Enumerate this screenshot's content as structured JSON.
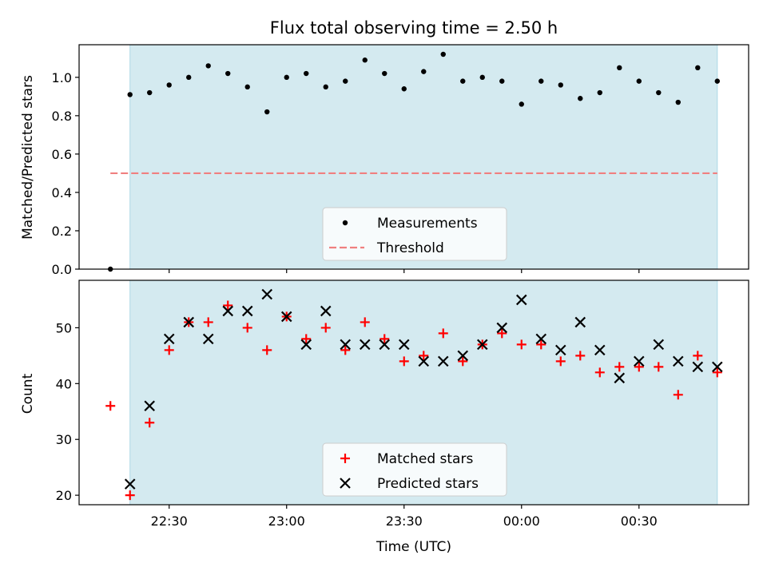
{
  "chart_data": [
    {
      "type": "scatter",
      "title": "Flux total observing time = 2.50 h",
      "xlabel": "",
      "ylabel": "Matched/Predicted stars",
      "ylim": [
        0,
        1.17
      ],
      "yticks": [
        "0.0",
        "0.2",
        "0.4",
        "0.6",
        "0.8",
        "1.0"
      ],
      "ytick_values": [
        0,
        0.2,
        0.4,
        0.6,
        0.8,
        1.0
      ],
      "x_axis": "time (UTC)",
      "xlim": [
        "22:07",
        "00:58"
      ],
      "shaded_span": [
        "22:20",
        "00:50"
      ],
      "shade_color": "#d4eaf0",
      "grid": false,
      "legend_position": "lower center",
      "series": [
        {
          "name": "Measurements",
          "marker": "dot",
          "color": "#000000",
          "points": [
            [
              "22:15",
              0.0
            ],
            [
              "22:20",
              0.91
            ],
            [
              "22:25",
              0.92
            ],
            [
              "22:30",
              0.96
            ],
            [
              "22:35",
              1.0
            ],
            [
              "22:40",
              1.06
            ],
            [
              "22:45",
              1.02
            ],
            [
              "22:50",
              0.95
            ],
            [
              "22:55",
              0.82
            ],
            [
              "23:00",
              1.0
            ],
            [
              "23:05",
              1.02
            ],
            [
              "23:10",
              0.95
            ],
            [
              "23:15",
              0.98
            ],
            [
              "23:20",
              1.09
            ],
            [
              "23:25",
              1.02
            ],
            [
              "23:30",
              0.94
            ],
            [
              "23:35",
              1.03
            ],
            [
              "23:40",
              1.12
            ],
            [
              "23:45",
              0.98
            ],
            [
              "23:50",
              1.0
            ],
            [
              "23:55",
              0.98
            ],
            [
              "00:00",
              0.86
            ],
            [
              "00:05",
              0.98
            ],
            [
              "00:10",
              0.96
            ],
            [
              "00:15",
              0.89
            ],
            [
              "00:20",
              0.92
            ],
            [
              "00:25",
              1.05
            ],
            [
              "00:30",
              0.98
            ],
            [
              "00:35",
              0.92
            ],
            [
              "00:40",
              0.87
            ],
            [
              "00:45",
              1.05
            ],
            [
              "00:50",
              0.98
            ]
          ]
        },
        {
          "name": "Threshold",
          "line": "dashed",
          "color": "#f08080",
          "value": 0.5,
          "x_range": [
            "22:15",
            "00:50"
          ]
        }
      ]
    },
    {
      "type": "scatter",
      "title": "",
      "xlabel": "Time (UTC)",
      "ylabel": "Count",
      "ylim": [
        18.3,
        58.5
      ],
      "yticks": [
        "20",
        "30",
        "40",
        "50"
      ],
      "ytick_values": [
        20,
        30,
        40,
        50
      ],
      "x_axis": "time (UTC)",
      "xlim": [
        "22:07",
        "00:58"
      ],
      "xticks": [
        "22:30",
        "23:00",
        "23:30",
        "00:00",
        "00:30"
      ],
      "xtick_values": [
        "22:30",
        "23:00",
        "23:30",
        "00:00",
        "00:30"
      ],
      "shaded_span": [
        "22:20",
        "00:50"
      ],
      "shade_color": "#d4eaf0",
      "grid": false,
      "legend_position": "lower center",
      "series": [
        {
          "name": "Matched stars",
          "marker": "plus",
          "color": "#ff0000",
          "points": [
            [
              "22:15",
              36
            ],
            [
              "22:20",
              20
            ],
            [
              "22:25",
              33
            ],
            [
              "22:30",
              46
            ],
            [
              "22:35",
              51
            ],
            [
              "22:40",
              51
            ],
            [
              "22:45",
              54
            ],
            [
              "22:50",
              50
            ],
            [
              "22:55",
              46
            ],
            [
              "23:00",
              52
            ],
            [
              "23:05",
              48
            ],
            [
              "23:10",
              50
            ],
            [
              "23:15",
              46
            ],
            [
              "23:20",
              51
            ],
            [
              "23:25",
              48
            ],
            [
              "23:30",
              44
            ],
            [
              "23:35",
              45
            ],
            [
              "23:40",
              49
            ],
            [
              "23:45",
              44
            ],
            [
              "23:50",
              47
            ],
            [
              "23:55",
              49
            ],
            [
              "00:00",
              47
            ],
            [
              "00:05",
              47
            ],
            [
              "00:10",
              44
            ],
            [
              "00:15",
              45
            ],
            [
              "00:20",
              42
            ],
            [
              "00:25",
              43
            ],
            [
              "00:30",
              43
            ],
            [
              "00:35",
              43
            ],
            [
              "00:40",
              38
            ],
            [
              "00:45",
              45
            ],
            [
              "00:50",
              42
            ]
          ]
        },
        {
          "name": "Predicted stars",
          "marker": "x",
          "color": "#000000",
          "points": [
            [
              "22:20",
              22
            ],
            [
              "22:25",
              36
            ],
            [
              "22:30",
              48
            ],
            [
              "22:35",
              51
            ],
            [
              "22:40",
              48
            ],
            [
              "22:45",
              53
            ],
            [
              "22:50",
              53
            ],
            [
              "22:55",
              56
            ],
            [
              "23:00",
              52
            ],
            [
              "23:05",
              47
            ],
            [
              "23:10",
              53
            ],
            [
              "23:15",
              47
            ],
            [
              "23:20",
              47
            ],
            [
              "23:25",
              47
            ],
            [
              "23:30",
              47
            ],
            [
              "23:35",
              44
            ],
            [
              "23:40",
              44
            ],
            [
              "23:45",
              45
            ],
            [
              "23:50",
              47
            ],
            [
              "23:55",
              50
            ],
            [
              "00:00",
              55
            ],
            [
              "00:05",
              48
            ],
            [
              "00:10",
              46
            ],
            [
              "00:15",
              51
            ],
            [
              "00:20",
              46
            ],
            [
              "00:25",
              41
            ],
            [
              "00:30",
              44
            ],
            [
              "00:35",
              47
            ],
            [
              "00:40",
              44
            ],
            [
              "00:45",
              43
            ],
            [
              "00:50",
              43
            ]
          ]
        }
      ]
    }
  ]
}
